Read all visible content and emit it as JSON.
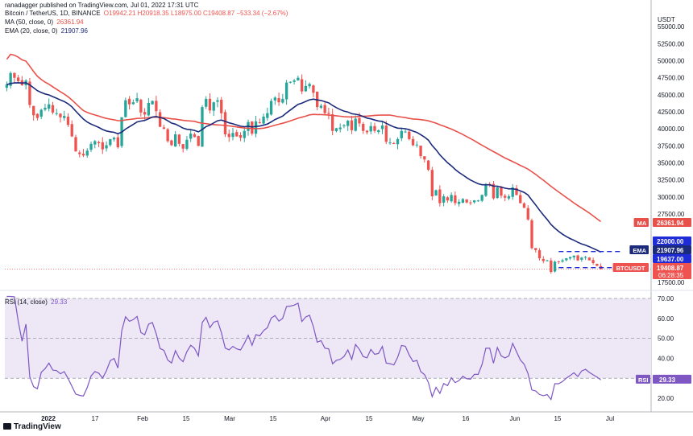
{
  "header": {
    "published": "ranadagger published on TradingView.com, Jul 01, 2022 17:31 UTC",
    "symbol": "Bitcoin / TetherUS, 1D, BINANCE",
    "ohlc": "O19942.21  H20918.35  L18975.00  C19408.87  −533.34 (−2.67%)",
    "ma_label": "MA (50, close, 0)",
    "ma_value": "26361.94",
    "ema_label": "EMA (20, close, 0)",
    "ema_value": "21907.96",
    "rsi_label": "RSI (14, close)",
    "rsi_value": "29.33",
    "brand": "TradingView"
  },
  "colors": {
    "up": "#26a69a",
    "down": "#ef5350",
    "ma": "#e8514a",
    "ema": "#1b2a7a",
    "rsi": "#7e57c2",
    "rsi_band": "#ede7f6",
    "axis_text": "#131722",
    "dashed": "#1f2bd6"
  },
  "chart_data": [
    {
      "type": "candlestick",
      "name": "Bitcoin / TetherUS, 1D, BINANCE",
      "currency": "USDT",
      "x_ticks": [
        "2022",
        "17",
        "Feb",
        "15",
        "Mar",
        "15",
        "Apr",
        "15",
        "May",
        "16",
        "Jun",
        "15",
        "Jul"
      ],
      "y_ticks": [
        55000,
        52500,
        50000,
        47500,
        45000,
        42500,
        40000,
        37500,
        35000,
        32500,
        30000,
        27500,
        17500
      ],
      "ylim": [
        17000,
        57500
      ],
      "close_path": [
        46500,
        48200,
        47500,
        47000,
        46400,
        47100,
        43500,
        42000,
        41600,
        42800,
        43100,
        43600,
        42400,
        42300,
        41700,
        41900,
        40600,
        38900,
        36700,
        36300,
        36100,
        36800,
        37800,
        38200,
        37900,
        37000,
        37600,
        38500,
        38700,
        37300,
        41700,
        44200,
        43600,
        43900,
        44500,
        42400,
        42100,
        43800,
        44100,
        42600,
        40300,
        40000,
        38200,
        37600,
        39200,
        37800,
        37100,
        38400,
        39300,
        38800,
        37500,
        43200,
        44400,
        42700,
        43900,
        44200,
        42300,
        39200,
        38800,
        39400,
        38900,
        38700,
        39700,
        41000,
        39300,
        41100,
        40900,
        41800,
        42300,
        44100,
        44600,
        43900,
        44400,
        46800,
        46900,
        47100,
        47500,
        45500,
        46300,
        46600,
        45300,
        43200,
        43400,
        42300,
        42200,
        39700,
        40100,
        40200,
        40500,
        41200,
        39800,
        41500,
        40800,
        39700,
        39500,
        40400,
        39700,
        39800,
        40500,
        38100,
        38000,
        37800,
        38500,
        39700,
        39600,
        38500,
        37600,
        37700,
        36000,
        35500,
        34000,
        30100,
        31000,
        29100,
        30100,
        29500,
        30300,
        29100,
        29300,
        29700,
        29200,
        29100,
        29500,
        29500,
        30300,
        31800,
        31800,
        29800,
        31400,
        30200,
        29900,
        30100,
        31400,
        30300,
        29100,
        28400,
        26700,
        22500,
        22200,
        21000,
        20600,
        20700,
        19000,
        20500,
        20500,
        20700,
        21000,
        21200,
        21400,
        20700,
        21100,
        21200,
        20700,
        20300,
        19900,
        19400
      ],
      "indicators": [
        {
          "name": "MA (50, close, 0)",
          "last": 26361.94
        },
        {
          "name": "EMA (20, close, 0)",
          "last": 21907.96
        }
      ],
      "price_labels": [
        {
          "label": "MA",
          "value": "26361.94"
        },
        {
          "label": "",
          "value": "22000.00"
        },
        {
          "label": "EMA",
          "value": "21907.96"
        },
        {
          "label": "",
          "value": "19637.00"
        },
        {
          "label": "BTCUSDT",
          "value": "19408.87",
          "countdown": "06:28:35"
        }
      ],
      "horizontal_levels": [
        22000,
        19637
      ]
    },
    {
      "type": "line",
      "name": "RSI (14, close)",
      "y_ticks": [
        70.0,
        60.0,
        50.0,
        40.0,
        30.0,
        20.0
      ],
      "ylim": [
        16,
        72
      ],
      "band": [
        30,
        70
      ],
      "last": 29.33
    }
  ]
}
